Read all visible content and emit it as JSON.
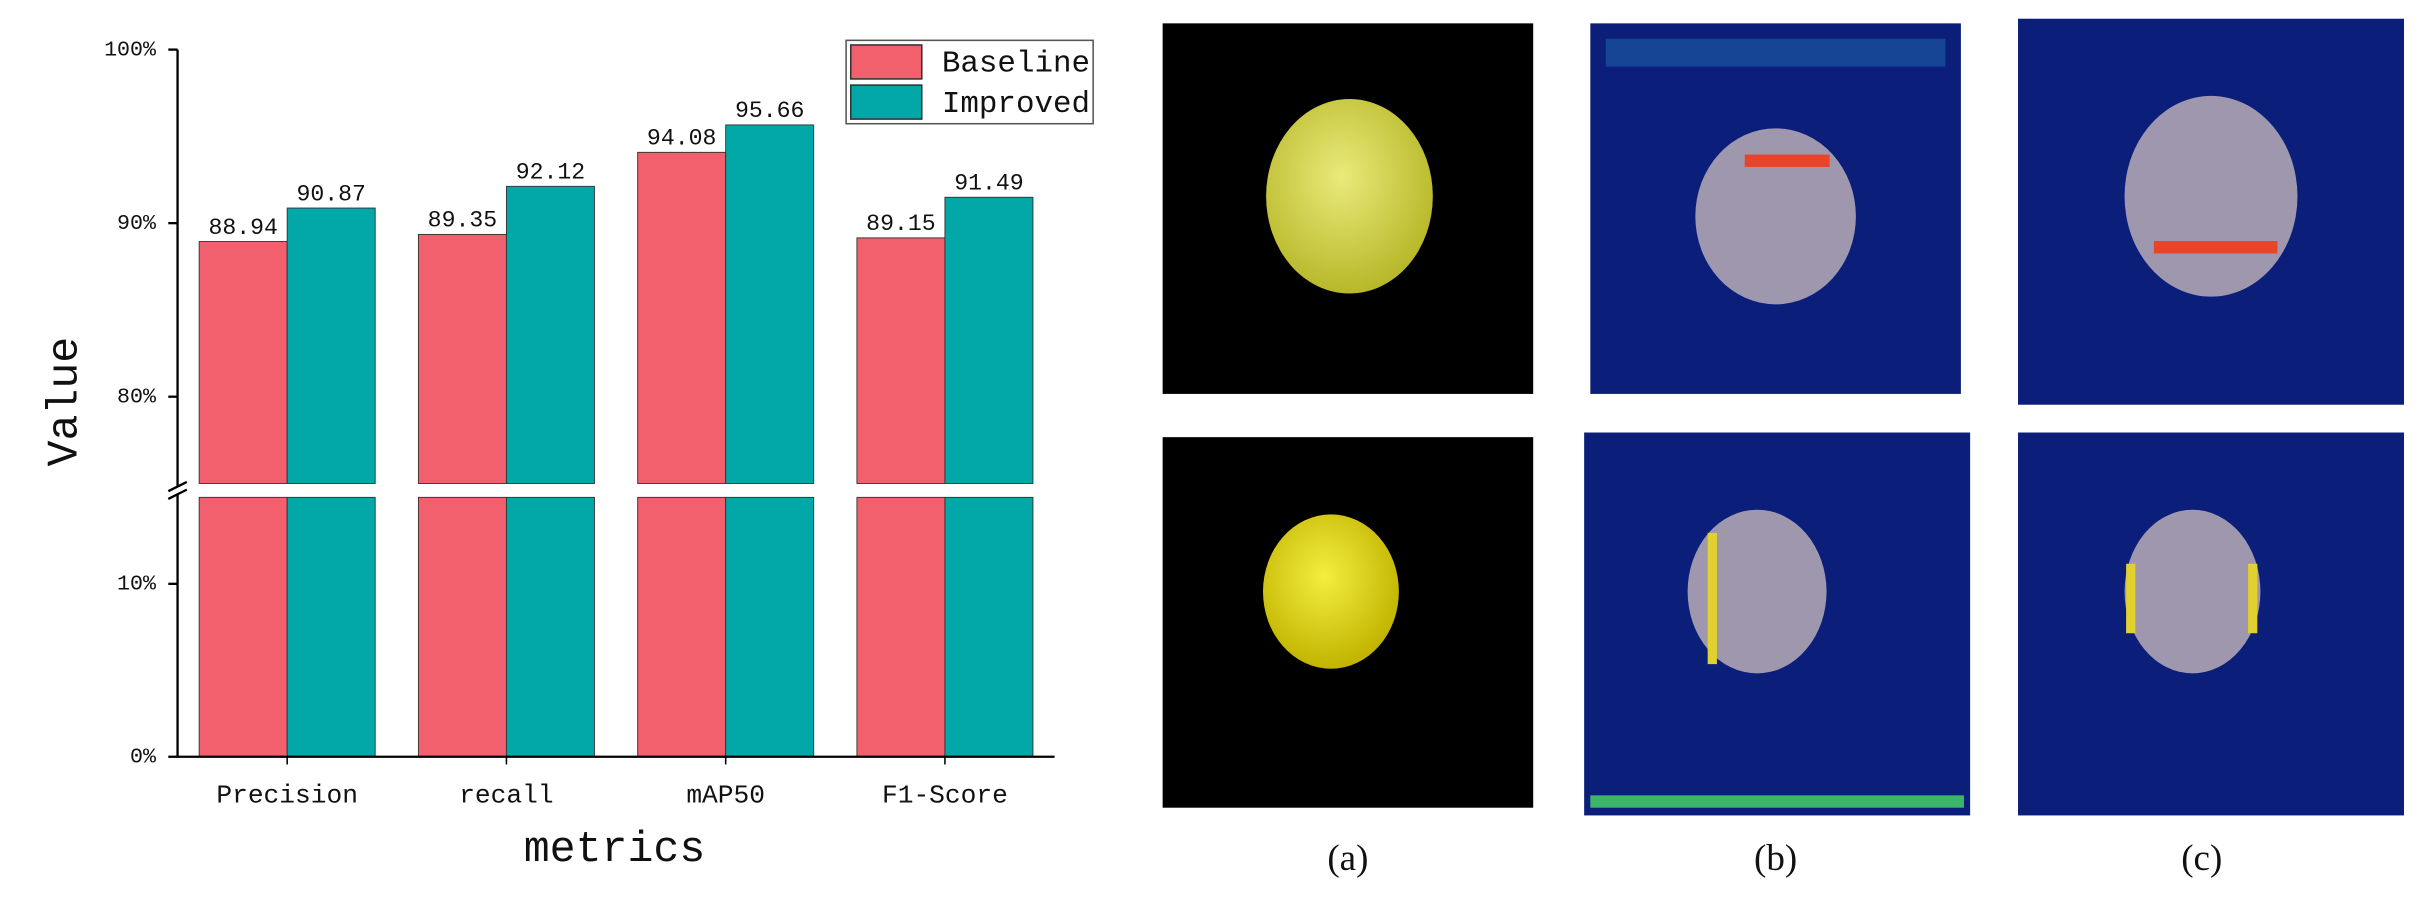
{
  "chart_data": {
    "type": "bar",
    "x_label": "metrics",
    "y_label": "Value",
    "categories": [
      "Precision",
      "recall",
      "mAP50",
      "F1-Score"
    ],
    "series": [
      {
        "name": "Baseline",
        "color": "#f25f6d",
        "values": [
          88.94,
          89.35,
          94.08,
          89.15
        ]
      },
      {
        "name": "Improved",
        "color": "#02a7a8",
        "values": [
          90.87,
          92.12,
          95.66,
          91.49
        ]
      }
    ],
    "ylim": [
      0,
      100
    ],
    "y_break": [
      15,
      75
    ],
    "yticks": [
      {
        "value": 0,
        "label": "0%"
      },
      {
        "value": 10,
        "label": "10%"
      },
      {
        "value": 80,
        "label": "80%"
      },
      {
        "value": 90,
        "label": "90%"
      },
      {
        "value": 100,
        "label": "100%"
      }
    ],
    "legend": "top-right"
  },
  "figure_panels": {
    "labels": [
      "(a)",
      "(b)",
      "(c)"
    ]
  }
}
